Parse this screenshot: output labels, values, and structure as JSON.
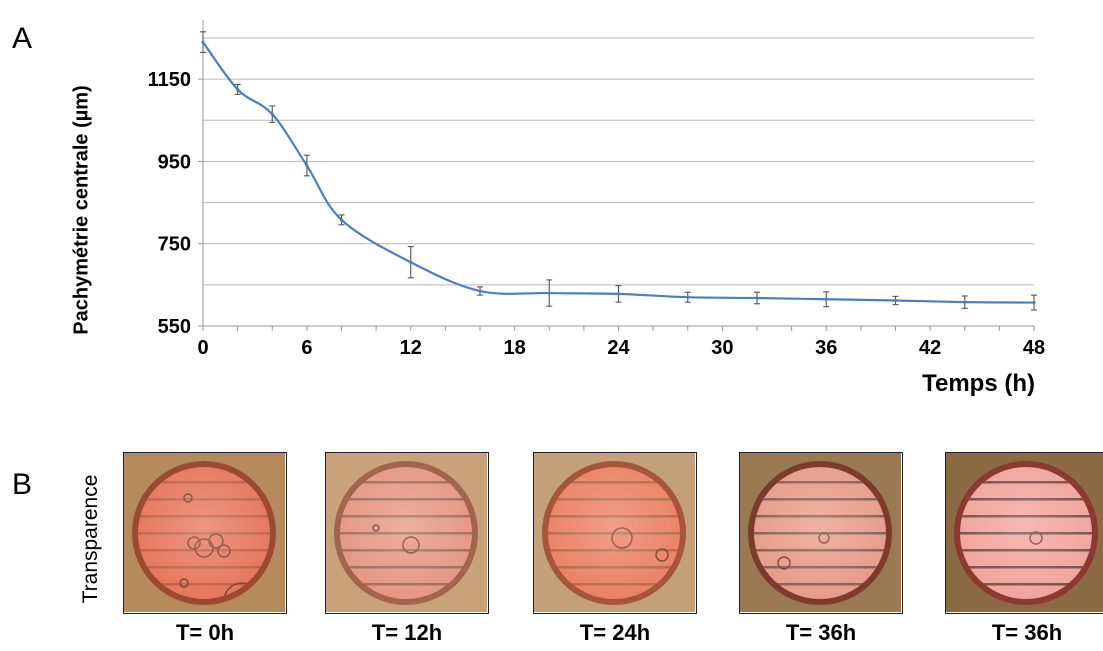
{
  "panel_labels": {
    "a": "A",
    "b": "B"
  },
  "chart_data": {
    "type": "line",
    "xlabel": "Temps (h)",
    "ylabel": "Pachymétrie centrale (µm)",
    "x_ticks": [
      0,
      6,
      12,
      18,
      24,
      30,
      36,
      42,
      48
    ],
    "y_ticks": [
      550,
      750,
      950,
      1150
    ],
    "xlim": [
      0,
      48
    ],
    "ylim": [
      550,
      1250
    ],
    "grid": "horizontal",
    "line_color": "#4a7fc1",
    "series": [
      {
        "x": [
          0,
          2,
          4,
          6,
          8,
          12,
          16,
          20,
          24,
          28,
          32,
          36,
          40,
          44,
          48
        ],
        "y": [
          1240,
          1125,
          1065,
          940,
          808,
          705,
          635,
          630,
          628,
          620,
          618,
          615,
          612,
          608,
          607
        ],
        "err": [
          25,
          12,
          20,
          25,
          12,
          38,
          10,
          32,
          20,
          12,
          14,
          18,
          10,
          15,
          18
        ]
      }
    ]
  },
  "panel_b": {
    "side_label": "Transparence",
    "images": [
      {
        "caption": "T= 0h"
      },
      {
        "caption": "T= 12h"
      },
      {
        "caption": "T= 24h"
      },
      {
        "caption": "T= 36h"
      },
      {
        "caption": "T= 36h"
      }
    ]
  }
}
